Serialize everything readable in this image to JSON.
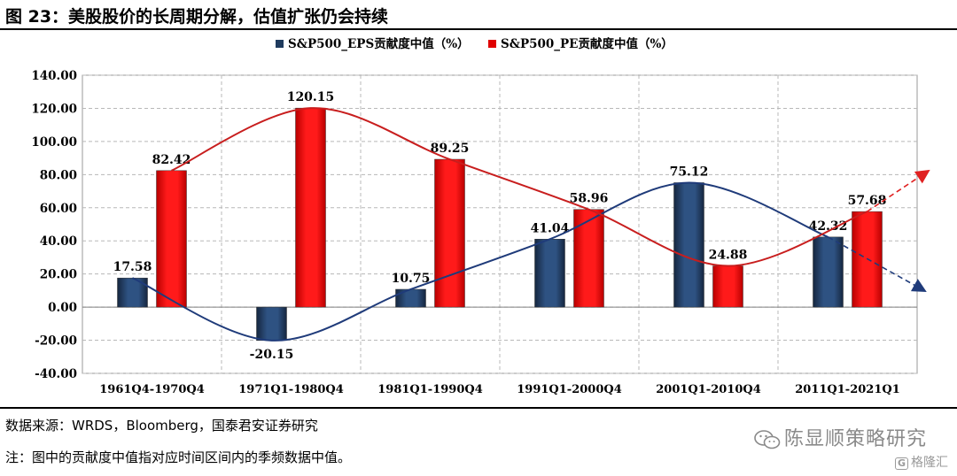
{
  "header": {
    "title": "图 23：美股股价的长周期分解，估值扩张仍会持续"
  },
  "footer": {
    "source": "数据来源：WRDS，Bloomberg，国泰君安证券研究",
    "note": "注：图中的贡献度中值指对应时间区间内的季频数据中值。"
  },
  "watermark": {
    "text": "陈显顺策略研究",
    "logo_text": "格隆汇"
  },
  "colors": {
    "eps": "#1f3b5e",
    "pe": "#e00000",
    "eps_curve": "#1f3b7a",
    "pe_curve": "#c81e1e"
  },
  "chart_data": {
    "type": "bar",
    "categories": [
      "1961Q4-1970Q4",
      "1971Q1-1980Q4",
      "1981Q1-1990Q4",
      "1991Q1-2000Q4",
      "2001Q1-2010Q4",
      "2011Q1-2021Q1"
    ],
    "series": [
      {
        "name": "S&P500_EPS贡献度中值（%）",
        "values": [
          17.58,
          -20.15,
          10.75,
          41.04,
          75.12,
          42.32
        ]
      },
      {
        "name": "S&P500_PE贡献度中值（%）",
        "values": [
          82.42,
          120.15,
          89.25,
          58.96,
          24.88,
          57.68
        ]
      }
    ],
    "ylim": [
      -40,
      140
    ],
    "yticks": [
      "140.00",
      "120.00",
      "100.00",
      "80.00",
      "60.00",
      "40.00",
      "20.00",
      "0.00",
      "-20.00",
      "-40.00"
    ],
    "labels": {
      "eps": [
        "17.58",
        "-20.15",
        "10.75",
        "41.04",
        "75.12",
        "42.32"
      ],
      "pe": [
        "82.42",
        "120.15",
        "89.25",
        "58.96",
        "24.88",
        "57.68"
      ]
    },
    "grid": true,
    "legend": "top",
    "annotations": "hand-drawn trend curves over each series with arrows extending right"
  }
}
